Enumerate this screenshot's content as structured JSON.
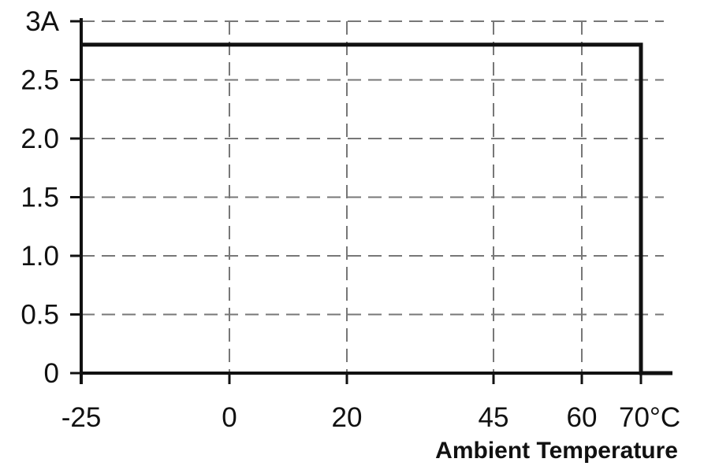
{
  "chart_data": {
    "type": "line",
    "title": "",
    "xlabel": "Ambient Temperature",
    "ylabel": "",
    "x_ticks": [
      {
        "value": -25,
        "label": "-25"
      },
      {
        "value": 0,
        "label": "0"
      },
      {
        "value": 20,
        "label": "20"
      },
      {
        "value": 45,
        "label": "45"
      },
      {
        "value": 60,
        "label": "60"
      },
      {
        "value": 70,
        "label": "70°C"
      }
    ],
    "y_ticks": [
      {
        "value": 0,
        "label": "0"
      },
      {
        "value": 0.5,
        "label": "0.5"
      },
      {
        "value": 1.0,
        "label": "1.0"
      },
      {
        "value": 1.5,
        "label": "1.5"
      },
      {
        "value": 2.0,
        "label": "2.0"
      },
      {
        "value": 2.5,
        "label": "2.5"
      },
      {
        "value": 3,
        "label": "3A"
      }
    ],
    "xlim": [
      -25,
      75
    ],
    "ylim": [
      0,
      3
    ],
    "grid": true,
    "series": [
      {
        "x": [
          -25,
          70,
          70,
          75
        ],
        "y": [
          2.8,
          2.8,
          0,
          0
        ]
      }
    ],
    "colors": {
      "line": "#111111",
      "grid": "#777777",
      "axis": "#111111"
    }
  }
}
